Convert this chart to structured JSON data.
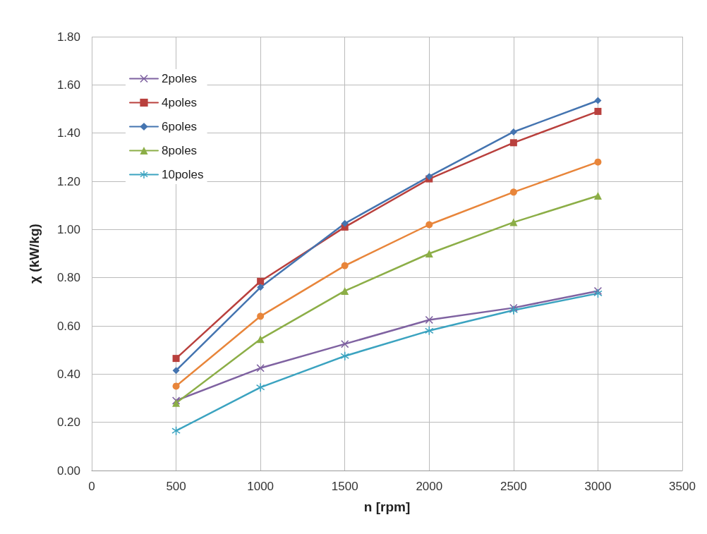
{
  "chart_data": {
    "type": "line",
    "xlabel": "n [rpm]",
    "ylabel": "χ (kW/kg)",
    "x": [
      500,
      1000,
      1500,
      2000,
      2500,
      3000
    ],
    "xlim": [
      0,
      3500
    ],
    "xticks": [
      0,
      500,
      1000,
      1500,
      2000,
      2500,
      3000,
      3500
    ],
    "ylim": [
      0,
      1.8
    ],
    "yticks": [
      {
        "value": 0,
        "label": "0.00"
      },
      {
        "value": 0.2,
        "label": "0.20"
      },
      {
        "value": 0.4,
        "label": "0.40"
      },
      {
        "value": 0.6,
        "label": "0.60"
      },
      {
        "value": 0.8,
        "label": "0.80"
      },
      {
        "value": 1,
        "label": "1.00"
      },
      {
        "value": 1.2,
        "label": "1.20"
      },
      {
        "value": 1.4,
        "label": "1.40"
      },
      {
        "value": 1.6,
        "label": "1.60"
      },
      {
        "value": 1.8,
        "label": "1.80"
      }
    ],
    "grid": true,
    "legend": "top left",
    "series": [
      {
        "name": "2poles",
        "color": "#7f62a1",
        "marker": "cross",
        "values": [
          0.29,
          0.425,
          0.525,
          0.625,
          0.675,
          0.745
        ]
      },
      {
        "name": "4poles",
        "color": "#b9403d",
        "marker": "square",
        "values": [
          0.465,
          0.785,
          1.01,
          1.21,
          1.36,
          1.49
        ]
      },
      {
        "name": "6poles",
        "color": "#4474b0",
        "marker": "diamond",
        "values": [
          0.415,
          0.76,
          1.025,
          1.22,
          1.405,
          1.535
        ]
      },
      {
        "name": "8poles",
        "color": "#8cae47",
        "marker": "triangle",
        "values": [
          0.28,
          0.545,
          0.745,
          0.9,
          1.03,
          1.14
        ]
      },
      {
        "name": "10poles",
        "color": "#3ba3c0",
        "marker": "star",
        "values": [
          0.165,
          0.345,
          0.475,
          0.58,
          0.665,
          0.735
        ]
      },
      {
        "color": "#e8853a",
        "marker": "circle",
        "values": [
          0.35,
          0.64,
          0.85,
          1.02,
          1.155,
          1.28
        ]
      }
    ]
  }
}
